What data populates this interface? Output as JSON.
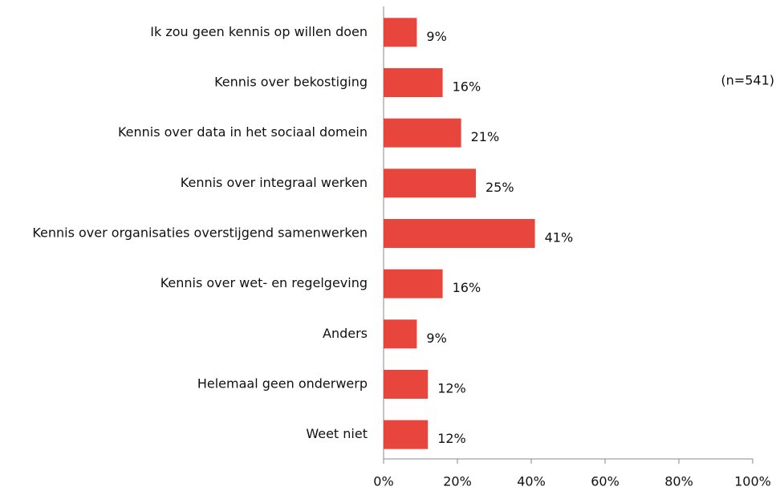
{
  "chart_data": {
    "type": "bar",
    "orientation": "horizontal",
    "categories": [
      "Ik zou geen kennis op willen doen",
      "Kennis over bekostiging",
      "Kennis over data in het sociaal domein",
      "Kennis over integraal werken",
      "Kennis over organisaties overstijgend samenwerken",
      "Kennis over wet- en regelgeving",
      "Anders",
      "Helemaal geen onderwerp",
      "Weet niet"
    ],
    "values": [
      9,
      16,
      21,
      25,
      41,
      16,
      9,
      12,
      12
    ],
    "value_labels": [
      "9%",
      "16%",
      "21%",
      "25%",
      "41%",
      "16%",
      "9%",
      "12%",
      "12%"
    ],
    "color": "#e8453c",
    "xlim": [
      0,
      100
    ],
    "xticks": [
      {
        "value": 0,
        "label": "0%"
      },
      {
        "value": 20,
        "label": "20%"
      },
      {
        "value": 40,
        "label": "40%"
      },
      {
        "value": 60,
        "label": "60%"
      },
      {
        "value": 80,
        "label": "80%"
      },
      {
        "value": 100,
        "label": "100%"
      }
    ],
    "annotation": "(n=541)"
  }
}
